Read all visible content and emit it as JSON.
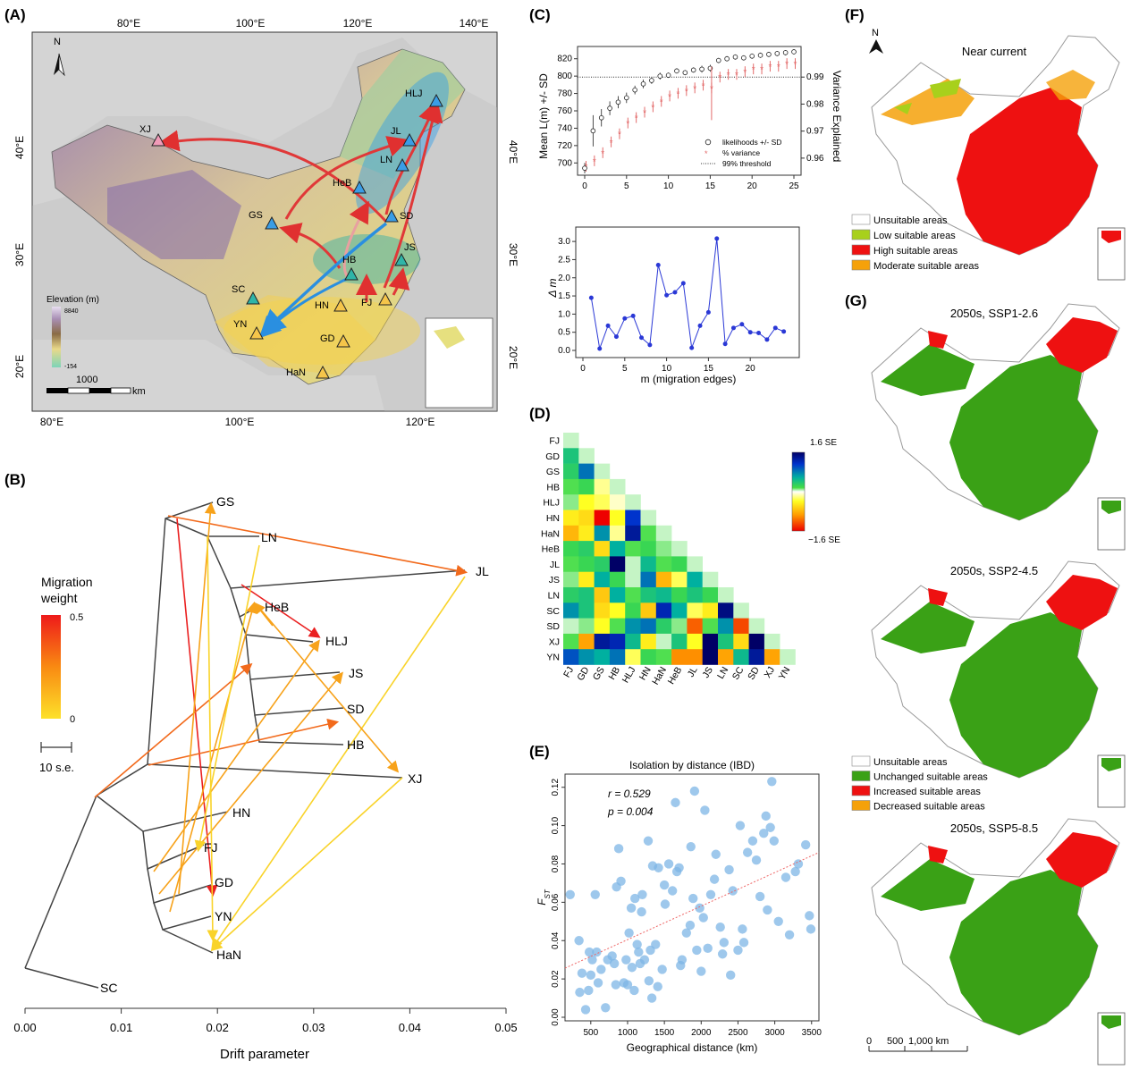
{
  "panel_labels": {
    "A": "(A)",
    "B": "(B)",
    "C": "(C)",
    "D": "(D)",
    "E": "(E)",
    "F": "(F)",
    "G": "(G)"
  },
  "panel_a": {
    "north": "N",
    "lon_labels": [
      "80°E",
      "100°E",
      "120°E",
      "140°E"
    ],
    "lat_labels": [
      "20°E",
      "30°E",
      "40°E"
    ],
    "elevation_title": "Elevation (m)",
    "elevation_max": "8840",
    "elevation_min": "-154",
    "scale_value": "1000",
    "scale_unit": "km",
    "populations": [
      "XJ",
      "HLJ",
      "JL",
      "LN",
      "HeB",
      "GS",
      "SD",
      "JS",
      "HB",
      "SC",
      "HN",
      "FJ",
      "YN",
      "GD",
      "HaN"
    ]
  },
  "panel_b": {
    "legend_title_1": "Migration",
    "legend_title_2": "weight",
    "legend_max": "0.5",
    "legend_min": "0",
    "scale_label": "10 s.e.",
    "xlabel": "Drift parameter",
    "xticks": [
      "0.00",
      "0.01",
      "0.02",
      "0.03",
      "0.04",
      "0.05"
    ],
    "tips": [
      "GS",
      "LN",
      "JL",
      "HeB",
      "HLJ",
      "JS",
      "SD",
      "HB",
      "XJ",
      "HN",
      "FJ",
      "GD",
      "YN",
      "HaN",
      "SC"
    ]
  },
  "panel_c": {
    "ylabel_left": "Mean L(m) +/- SD",
    "ylabel_right": "Variance Explained",
    "legend": [
      "likelihoods +/- SD",
      "% variance",
      "99% threshold"
    ],
    "ylabel_bottom": "Δ m",
    "xlabel_bottom": "m (migration edges)"
  },
  "panel_d": {
    "labels": [
      "FJ",
      "GD",
      "GS",
      "HB",
      "HLJ",
      "HN",
      "HaN",
      "HeB",
      "JL",
      "JS",
      "LN",
      "SC",
      "SD",
      "XJ",
      "YN"
    ],
    "scale_max": "1.6 SE",
    "scale_min": "−1.6 SE"
  },
  "panel_e": {
    "r_label": "r = 0.529",
    "p_label": "p = 0.004"
  },
  "panel_f": {
    "north": "N",
    "title": "Near current",
    "legend": [
      "Unsuitable areas",
      "Low suitable areas",
      "High suitable areas",
      "Moderate suitable areas"
    ],
    "colors": [
      "#ffffff",
      "#a8d01c",
      "#ee1111",
      "#f5a10a"
    ]
  },
  "panel_g": {
    "titles": [
      "2050s, SSP1-2.6",
      "2050s, SSP2-4.5",
      "2050s, SSP5-8.5"
    ],
    "legend": [
      "Unsuitable areas",
      "Unchanged suitable areas",
      "Increased suitable areas",
      "Decreased suitable areas"
    ],
    "colors": [
      "#ffffff",
      "#3aa116",
      "#ee1111",
      "#f5a10a"
    ],
    "scale_labels": [
      "0",
      "500",
      "1,000 km"
    ]
  },
  "chart_data": [
    {
      "type": "line",
      "panel": "C-top",
      "ylabel": "Mean L(m) +/- SD",
      "xlabel": "",
      "ylim": [
        690,
        830
      ],
      "ylim_right": [
        0.955,
        1.0
      ],
      "xticks": [
        0,
        5,
        10,
        15,
        20,
        25
      ],
      "yticks": [
        700,
        720,
        740,
        760,
        780,
        800,
        820
      ],
      "yticks_right": [
        0.96,
        0.97,
        0.98,
        0.99
      ],
      "x": [
        0,
        1,
        2,
        3,
        4,
        5,
        6,
        7,
        8,
        9,
        10,
        11,
        12,
        13,
        14,
        15,
        16,
        17,
        18,
        19,
        20,
        21,
        22,
        23,
        24,
        25
      ],
      "series": [
        {
          "name": "likelihoods +/- SD",
          "values": [
            694,
            737,
            752,
            763,
            770,
            775,
            784,
            791,
            795,
            800,
            801,
            806,
            804,
            807,
            808,
            809,
            818,
            820,
            822,
            821,
            823,
            824,
            825,
            826,
            827,
            828
          ],
          "sd": [
            6,
            18,
            10,
            8,
            7,
            6,
            5,
            5,
            4,
            4,
            3,
            3,
            3,
            3,
            4,
            4,
            3,
            3,
            3,
            3,
            3,
            3,
            3,
            3,
            3,
            3
          ]
        },
        {
          "name": "% variance",
          "values": [
            0.957,
            0.959,
            0.962,
            0.966,
            0.969,
            0.973,
            0.975,
            0.977,
            0.979,
            0.981,
            0.983,
            0.984,
            0.985,
            0.986,
            0.987,
            0.986,
            0.99,
            0.991,
            0.991,
            0.992,
            0.993,
            0.993,
            0.994,
            0.994,
            0.995,
            0.995
          ]
        }
      ],
      "threshold": 0.99,
      "threshold_label": "99% threshold"
    },
    {
      "type": "line",
      "panel": "C-bottom",
      "xlabel": "m (migration edges)",
      "ylabel": "Δ m",
      "xlim": [
        0,
        25
      ],
      "ylim": [
        0,
        3.2
      ],
      "xticks": [
        0,
        5,
        10,
        15,
        20
      ],
      "yticks": [
        0.0,
        0.5,
        1.0,
        1.5,
        2.0,
        2.5,
        3.0
      ],
      "x": [
        1,
        2,
        3,
        4,
        5,
        6,
        7,
        8,
        9,
        10,
        11,
        12,
        13,
        14,
        15,
        16,
        17,
        18,
        19,
        20,
        21,
        22,
        23,
        24
      ],
      "values": [
        1.45,
        0.05,
        0.68,
        0.38,
        0.88,
        0.95,
        0.35,
        0.15,
        2.35,
        1.52,
        1.6,
        1.85,
        0.07,
        0.68,
        1.05,
        3.08,
        0.18,
        0.62,
        0.72,
        0.5,
        0.48,
        0.3,
        0.62,
        0.52
      ]
    },
    {
      "type": "heatmap",
      "panel": "D",
      "labels": [
        "FJ",
        "GD",
        "GS",
        "HB",
        "HLJ",
        "HN",
        "HaN",
        "HeB",
        "JL",
        "JS",
        "LN",
        "SC",
        "SD",
        "XJ",
        "YN"
      ],
      "range": [
        -1.6,
        1.6
      ],
      "values": [
        [
          0.1
        ],
        [
          0.6,
          0.1
        ],
        [
          0.5,
          1.0,
          0.1
        ],
        [
          0.3,
          0.4,
          -0.2,
          0.1
        ],
        [
          0.2,
          -0.4,
          -0.3,
          -0.1,
          0.1
        ],
        [
          -0.5,
          -0.6,
          -1.6,
          -0.4,
          1.2,
          0.1
        ],
        [
          -0.8,
          -0.5,
          0.9,
          -0.2,
          1.4,
          0.3,
          0.1
        ],
        [
          0.4,
          0.5,
          -0.6,
          0.8,
          0.3,
          0.4,
          0.2,
          0.1
        ],
        [
          0.3,
          0.4,
          0.5,
          1.6,
          0.1,
          0.7,
          0.3,
          0.4,
          0.1
        ],
        [
          0.2,
          -0.5,
          0.8,
          0.4,
          0.1,
          1.0,
          -0.8,
          -0.3,
          0.8,
          0.1
        ],
        [
          0.5,
          0.6,
          -0.7,
          0.8,
          0.3,
          0.6,
          0.7,
          0.4,
          0.6,
          0.4,
          0.1
        ],
        [
          0.9,
          0.6,
          -0.6,
          -0.4,
          0.4,
          -0.7,
          1.3,
          0.8,
          -0.3,
          -0.5,
          1.5,
          0.1
        ],
        [
          0.1,
          0.2,
          -0.4,
          0.3,
          0.9,
          1.0,
          0.5,
          0.2,
          -1.2,
          0.3,
          0.9,
          -1.3,
          0.1
        ],
        [
          0.3,
          -0.9,
          1.4,
          1.3,
          0.7,
          -0.5,
          0.1,
          0.6,
          -0.4,
          1.8,
          0.6,
          -0.6,
          1.8,
          0.1
        ],
        [
          1.1,
          0.9,
          0.8,
          1.0,
          -0.3,
          0.4,
          0.3,
          -1.0,
          -1.0,
          1.9,
          -0.9,
          0.7,
          1.4,
          -0.9,
          0.1
        ]
      ]
    },
    {
      "type": "scatter",
      "panel": "E",
      "title": "Isolation by distance (IBD)",
      "xlabel": "Geographical distance (km)",
      "ylabel": "FST",
      "xlim": [
        150,
        3600
      ],
      "ylim": [
        0,
        0.125
      ],
      "xticks": [
        500,
        1000,
        1500,
        2000,
        2500,
        3000,
        3500
      ],
      "yticks": [
        0.0,
        0.02,
        0.04,
        0.06,
        0.08,
        0.1,
        0.12
      ],
      "fit": {
        "slope": 1.75e-05,
        "intercept": 0.023
      },
      "points": [
        [
          220,
          0.064
        ],
        [
          340,
          0.04
        ],
        [
          350,
          0.013
        ],
        [
          380,
          0.023
        ],
        [
          430,
          0.004
        ],
        [
          470,
          0.014
        ],
        [
          480,
          0.034
        ],
        [
          500,
          0.022
        ],
        [
          520,
          0.03
        ],
        [
          560,
          0.064
        ],
        [
          580,
          0.034
        ],
        [
          600,
          0.018
        ],
        [
          640,
          0.025
        ],
        [
          700,
          0.005
        ],
        [
          730,
          0.03
        ],
        [
          790,
          0.032
        ],
        [
          820,
          0.028
        ],
        [
          840,
          0.017
        ],
        [
          850,
          0.068
        ],
        [
          880,
          0.088
        ],
        [
          910,
          0.071
        ],
        [
          950,
          0.018
        ],
        [
          980,
          0.03
        ],
        [
          1000,
          0.017
        ],
        [
          1020,
          0.044
        ],
        [
          1050,
          0.057
        ],
        [
          1060,
          0.026
        ],
        [
          1090,
          0.014
        ],
        [
          1100,
          0.062
        ],
        [
          1130,
          0.038
        ],
        [
          1150,
          0.034
        ],
        [
          1170,
          0.028
        ],
        [
          1190,
          0.055
        ],
        [
          1200,
          0.064
        ],
        [
          1230,
          0.03
        ],
        [
          1280,
          0.092
        ],
        [
          1290,
          0.019
        ],
        [
          1310,
          0.035
        ],
        [
          1330,
          0.01
        ],
        [
          1340,
          0.079
        ],
        [
          1380,
          0.038
        ],
        [
          1410,
          0.016
        ],
        [
          1420,
          0.078
        ],
        [
          1470,
          0.025
        ],
        [
          1500,
          0.069
        ],
        [
          1510,
          0.059
        ],
        [
          1560,
          0.08
        ],
        [
          1610,
          0.066
        ],
        [
          1650,
          0.112
        ],
        [
          1670,
          0.076
        ],
        [
          1700,
          0.078
        ],
        [
          1720,
          0.027
        ],
        [
          1740,
          0.03
        ],
        [
          1800,
          0.044
        ],
        [
          1850,
          0.048
        ],
        [
          1860,
          0.089
        ],
        [
          1890,
          0.062
        ],
        [
          1910,
          0.118
        ],
        [
          1940,
          0.035
        ],
        [
          1980,
          0.057
        ],
        [
          2000,
          0.024
        ],
        [
          2030,
          0.052
        ],
        [
          2050,
          0.108
        ],
        [
          2090,
          0.036
        ],
        [
          2130,
          0.064
        ],
        [
          2180,
          0.072
        ],
        [
          2200,
          0.085
        ],
        [
          2260,
          0.047
        ],
        [
          2290,
          0.033
        ],
        [
          2310,
          0.039
        ],
        [
          2380,
          0.077
        ],
        [
          2400,
          0.022
        ],
        [
          2430,
          0.066
        ],
        [
          2500,
          0.035
        ],
        [
          2530,
          0.1
        ],
        [
          2560,
          0.046
        ],
        [
          2580,
          0.039
        ],
        [
          2630,
          0.086
        ],
        [
          2700,
          0.092
        ],
        [
          2750,
          0.082
        ],
        [
          2800,
          0.063
        ],
        [
          2850,
          0.096
        ],
        [
          2880,
          0.105
        ],
        [
          2900,
          0.056
        ],
        [
          2940,
          0.099
        ],
        [
          2960,
          0.123
        ],
        [
          2990,
          0.092
        ],
        [
          3050,
          0.05
        ],
        [
          3150,
          0.073
        ],
        [
          3200,
          0.043
        ],
        [
          3280,
          0.076
        ],
        [
          3320,
          0.08
        ],
        [
          3420,
          0.09
        ],
        [
          3470,
          0.053
        ],
        [
          3490,
          0.046
        ]
      ]
    }
  ]
}
